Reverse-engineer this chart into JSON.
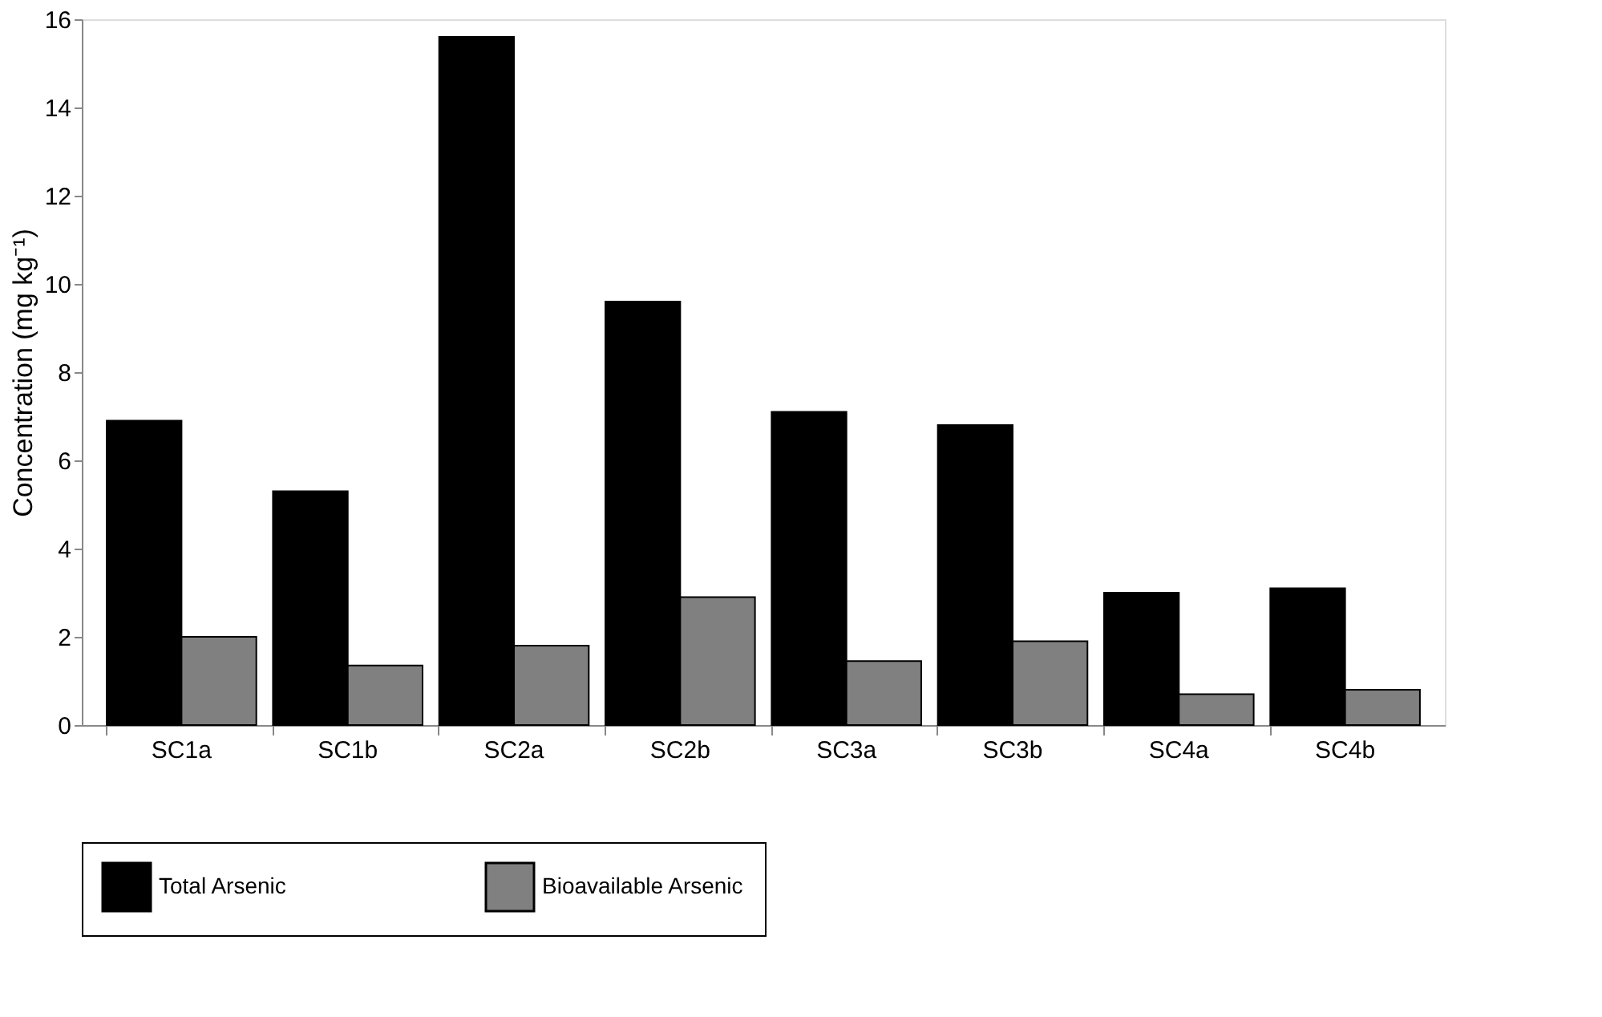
{
  "chart_data": {
    "type": "bar",
    "ylabel": "Concentration (mg kg⁻¹)",
    "categories": [
      "SC1a",
      "SC1b",
      "SC2a",
      "SC2b",
      "SC3a",
      "SC3b",
      "SC4a",
      "SC4b"
    ],
    "series": [
      {
        "name": "Total Arsenic",
        "color": "#000000",
        "values": [
          6.9,
          5.3,
          15.6,
          9.6,
          7.1,
          6.8,
          3.0,
          3.1
        ]
      },
      {
        "name": "Bioavailable Arsenic",
        "color": "#808080",
        "values": [
          2.0,
          1.35,
          1.8,
          2.9,
          1.45,
          1.9,
          0.7,
          0.8
        ]
      }
    ],
    "ylim": [
      0,
      16
    ],
    "yticks": [
      0,
      2,
      4,
      6,
      8,
      10,
      12,
      14,
      16
    ],
    "grid": false,
    "legend": "bottom"
  }
}
